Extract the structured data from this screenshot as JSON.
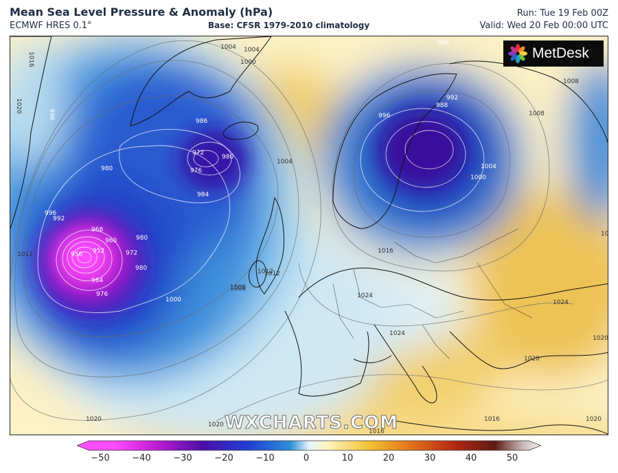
{
  "header": {
    "title": "Mean Sea Level Pressure & Anomaly (hPa)",
    "subtitle": "ECMWF HRES 0.1°",
    "base": "Base: CFSR 1979-2010 climatology",
    "run": "Run: Tue 19 Feb 00Z",
    "valid": "Valid: Wed 20 Feb 00:00 UTC"
  },
  "logo": {
    "text": "MetDesk",
    "icon": "metdesk-flower-icon"
  },
  "watermark": "WXCHARTS.COM",
  "isobar_labels": [
    "1016",
    "1012",
    "1020",
    "1004",
    "996",
    "1004",
    "1000",
    "1004",
    "996",
    "992",
    "988",
    "996",
    "1008",
    "1008",
    "1004",
    "1000",
    "1016",
    "1008",
    "1012",
    "1008",
    "972",
    "976",
    "980",
    "986",
    "980",
    "984",
    "996",
    "992",
    "980",
    "972",
    "968",
    "960",
    "956",
    "952",
    "964",
    "976",
    "980",
    "1000",
    "1008",
    "1012",
    "1016",
    "1020",
    "1020",
    "1024",
    "1024",
    "1020",
    "1020",
    "1024",
    "1020",
    "1016"
  ],
  "colorbar": {
    "ticks": [
      "−50",
      "−40",
      "−30",
      "−20",
      "−10",
      "0",
      "10",
      "20",
      "30",
      "40",
      "50"
    ],
    "colors": [
      "#ff4dff",
      "#c21bd6",
      "#4a0fa8",
      "#1f3fd4",
      "#2e8fd8",
      "#b5def2",
      "#fdf4c0",
      "#f2c232",
      "#e3721b",
      "#b52a12",
      "#5e1a12",
      "#c8b8b8"
    ]
  }
}
